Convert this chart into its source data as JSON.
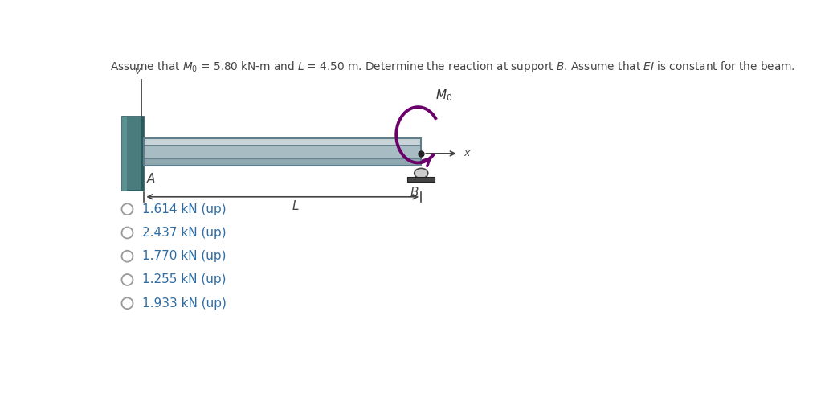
{
  "title_parts": [
    "Assume that ",
    "M",
    "0",
    " = 5.80 kN-m and ",
    "L",
    " = 4.50 m. Determine the reaction at support ",
    "B",
    ". Assume that ",
    "EI",
    " is constant for the beam."
  ],
  "choices": [
    "1.614 kN (up)",
    "2.437 kN (up)",
    "1.770 kN (up)",
    "1.255 kN (up)",
    "1.933 kN (up)"
  ],
  "text_color": "#2E6DA4",
  "title_color": "#444444",
  "bg_color": "#ffffff",
  "wall_color_dark": "#4a7c7e",
  "wall_color_light": "#5a9090",
  "beam_top_color": "#c8d4d8",
  "beam_mid_color": "#a8bcc4",
  "beam_bot_color": "#8fa8b0",
  "beam_outline": "#607d8b",
  "moment_color": "#6b006b",
  "support_gray": "#888888",
  "support_dark": "#444444",
  "dim_color": "#444444"
}
